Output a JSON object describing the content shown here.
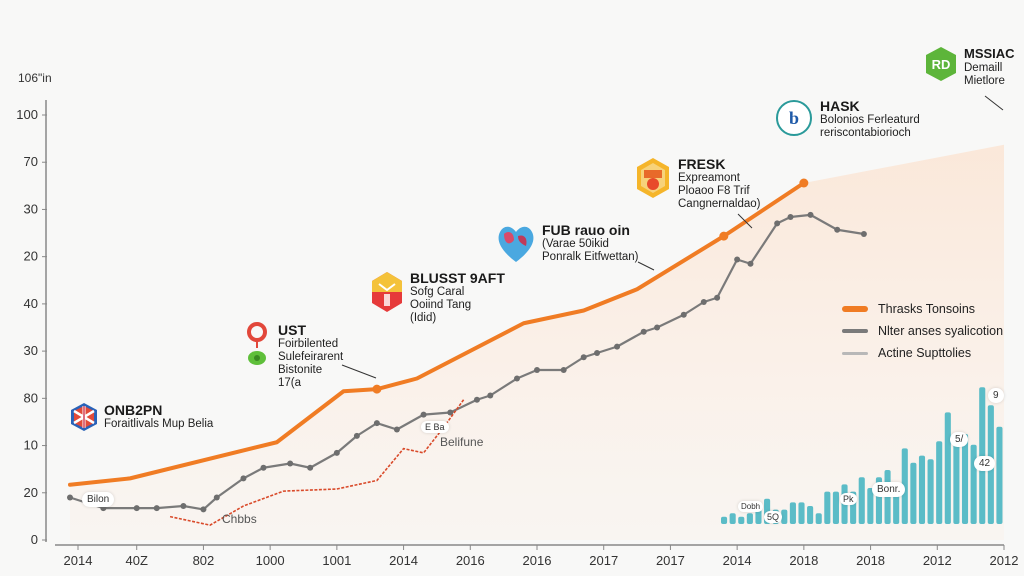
{
  "chart_data": {
    "type": "line",
    "title": "",
    "ylabel": "106\"in",
    "xlabel": "",
    "y_tick_labels": [
      "0",
      "20",
      "10",
      "80",
      "30",
      "40",
      "20",
      "30",
      "70",
      "100"
    ],
    "x_tick_labels": [
      "2014",
      "40Z",
      "802",
      "1000",
      "1001",
      "2014",
      "2016",
      "2016",
      "2017",
      "2017",
      "2014",
      "2018",
      "2018",
      "2012",
      "2012"
    ],
    "ylim": [
      0,
      100
    ],
    "grid": false,
    "legend_position": "right",
    "series": [
      {
        "name": "Thrasks Tonsoins",
        "color": "#f07c24",
        "style": "thick",
        "points": [
          [
            0.0,
            13.0
          ],
          [
            0.9,
            14.5
          ],
          [
            3.1,
            23.0
          ],
          [
            4.1,
            35.0
          ],
          [
            4.6,
            35.5
          ],
          [
            5.2,
            38.0
          ],
          [
            6.8,
            51.0
          ],
          [
            7.7,
            54.0
          ],
          [
            8.5,
            59.0
          ],
          [
            9.8,
            71.5
          ],
          [
            11.0,
            84.0
          ]
        ]
      },
      {
        "name": "Nlter anses syalicotion",
        "color": "#7a7a7a",
        "style": "markers",
        "points": [
          [
            0.0,
            10.0
          ],
          [
            0.5,
            7.5
          ],
          [
            1.0,
            7.5
          ],
          [
            1.3,
            7.5
          ],
          [
            1.7,
            8.0
          ],
          [
            2.0,
            7.2
          ],
          [
            2.2,
            10.0
          ],
          [
            2.6,
            14.5
          ],
          [
            2.9,
            17.0
          ],
          [
            3.3,
            18.0
          ],
          [
            3.6,
            17.0
          ],
          [
            4.0,
            20.5
          ],
          [
            4.3,
            24.5
          ],
          [
            4.6,
            27.5
          ],
          [
            4.9,
            26.0
          ],
          [
            5.3,
            29.5
          ],
          [
            5.7,
            30.0
          ],
          [
            6.1,
            33.0
          ],
          [
            6.3,
            34.0
          ],
          [
            6.7,
            38.0
          ],
          [
            7.0,
            40.0
          ],
          [
            7.4,
            40.0
          ],
          [
            7.7,
            43.0
          ],
          [
            7.9,
            44.0
          ],
          [
            8.2,
            45.5
          ],
          [
            8.6,
            49.0
          ],
          [
            8.8,
            50.0
          ],
          [
            9.2,
            53.0
          ],
          [
            9.5,
            56.0
          ],
          [
            9.7,
            57.0
          ],
          [
            10.0,
            66.0
          ],
          [
            10.2,
            65.0
          ],
          [
            10.6,
            74.5
          ],
          [
            10.8,
            76.0
          ],
          [
            11.1,
            76.5
          ],
          [
            11.5,
            73.0
          ],
          [
            11.9,
            72.0
          ]
        ]
      },
      {
        "name": "Actine Supttolies",
        "color": "#d94a2a",
        "style": "dashed",
        "points": [
          [
            1.5,
            5.5
          ],
          [
            2.1,
            3.5
          ],
          [
            2.6,
            8.0
          ],
          [
            3.2,
            11.5
          ],
          [
            4.0,
            12.0
          ],
          [
            4.6,
            14.0
          ],
          [
            5.0,
            21.5
          ],
          [
            5.3,
            20.5
          ],
          [
            5.6,
            26.5
          ],
          [
            5.9,
            33.0
          ]
        ]
      }
    ],
    "bar_series": {
      "name": "bars",
      "color": "#5bbcc7",
      "values": [
        2,
        3,
        2,
        3,
        4,
        7,
        4,
        4,
        6,
        6,
        5,
        3,
        9,
        9,
        11,
        9,
        13,
        10,
        13,
        15,
        11,
        21,
        17,
        19,
        18,
        23,
        31,
        23,
        25,
        22,
        38,
        33,
        27
      ]
    },
    "annotations": [
      {
        "title": "ONB2PN",
        "body": [
          "Foraitlivals Mup Belia"
        ],
        "icon": "flag-hexagon-icon"
      },
      {
        "title": "UST",
        "body": [
          "Foirbilented",
          "Sulefeirarent",
          "Bistonite",
          "17(a"
        ],
        "icon": "map-pin-icon"
      },
      {
        "title": "BLUSST 9AFT",
        "body": [
          "Sofg Caral",
          "Ooiind Tang",
          "(Idid)"
        ],
        "icon": "shield-hexagon-icon"
      },
      {
        "title": "FUB rauo oin",
        "body": [
          "(Varae 50ikid",
          "Ponralk Eitfwettan)"
        ],
        "icon": "heart-globe-icon"
      },
      {
        "title": "FRESK",
        "body": [
          "Expreamont",
          "Ploaoo F8 Trif",
          "Cangnernaldao)"
        ],
        "icon": "badge-hexagon-icon"
      },
      {
        "title": "HASK",
        "body": [
          "Bolonios Ferleaturd",
          "reriscontabiorioch"
        ],
        "icon": "circle-logo-icon"
      },
      {
        "title": "MSSIAC",
        "body": [
          "Demaill",
          "Mietlore"
        ],
        "icon": "green-hexagon-icon"
      }
    ],
    "small_labels": {
      "bilon": "Bilon",
      "chbbs": "Chbbs",
      "belifune": "Belifune",
      "ebe": "E Ba",
      "bonr": "Bonr.",
      "pk": "Pk",
      "sq": "5Q",
      "dobh": "Dobh",
      "v9": "9",
      "v5": "5/",
      "v42": "42"
    }
  }
}
